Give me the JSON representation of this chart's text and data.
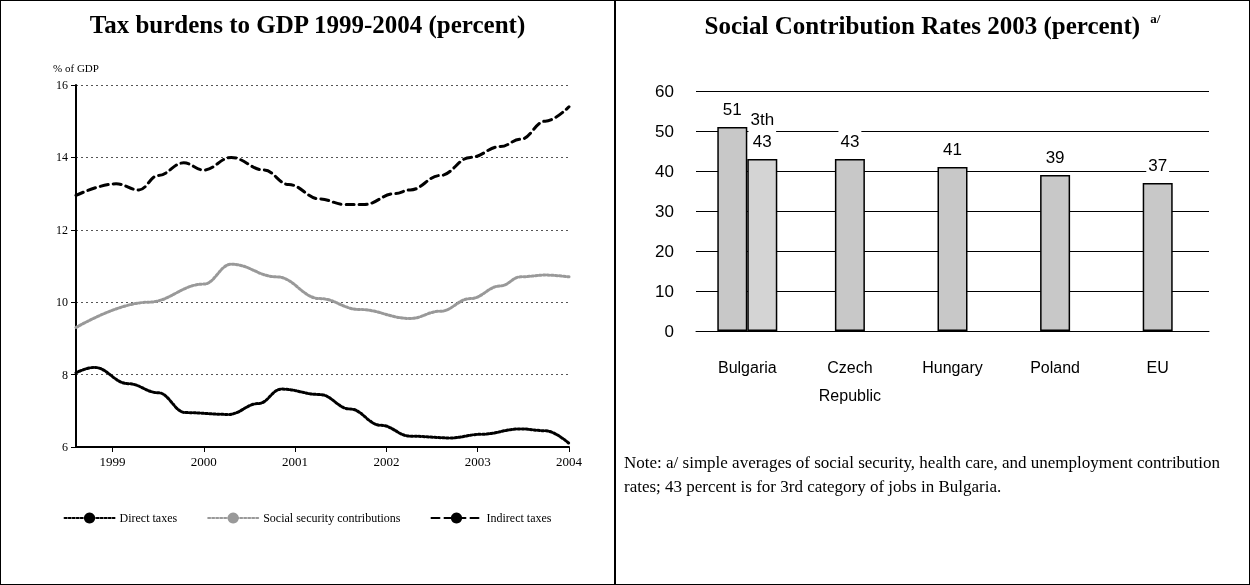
{
  "chart_data": [
    {
      "type": "line",
      "title": "Tax burdens to GDP 1999-2004 (percent)",
      "ylabel": "% of GDP",
      "xlim": [
        1998.6,
        2004
      ],
      "xticks": [
        1999,
        2000,
        2001,
        2002,
        2003,
        2004
      ],
      "ylim": [
        6,
        16
      ],
      "yticks": [
        6,
        8,
        10,
        12,
        14,
        16
      ],
      "grid": "y",
      "legend": "bottom",
      "marker": "none",
      "series": [
        {
          "name": "Direct taxes",
          "color": "#000000",
          "line_style": "dotted",
          "x": [
            1998.6,
            1998.8,
            1999.17,
            1999.5,
            1999.8,
            2000.27,
            2000.6,
            2000.85,
            2001.27,
            2001.6,
            2001.94,
            2002.26,
            2002.7,
            2003.03,
            2003.47,
            2003.74,
            2004
          ],
          "values": [
            8.05,
            8.2,
            7.75,
            7.5,
            6.95,
            6.9,
            7.2,
            7.6,
            7.45,
            7.05,
            6.6,
            6.3,
            6.25,
            6.35,
            6.5,
            6.45,
            6.1
          ]
        },
        {
          "name": "Social security contributions",
          "color": "#999999",
          "line_style": "dotted",
          "x": [
            1998.6,
            1999.39,
            2000.0,
            2000.3,
            2000.8,
            2001.27,
            2001.7,
            2002.26,
            2002.59,
            2002.92,
            2003.25,
            2003.47,
            2003.74,
            2004
          ],
          "values": [
            9.3,
            10.0,
            10.5,
            11.05,
            10.7,
            10.1,
            9.8,
            9.55,
            9.75,
            10.1,
            10.45,
            10.7,
            10.75,
            10.7
          ]
        },
        {
          "name": "Indirect taxes",
          "color": "#000000",
          "line_style": "dashed",
          "x": [
            1998.6,
            1999.04,
            1999.29,
            1999.5,
            1999.78,
            2000.0,
            2000.3,
            2000.66,
            2000.93,
            2001.27,
            2001.54,
            2001.76,
            2002.09,
            2002.26,
            2002.59,
            2002.92,
            2003.25,
            2003.47,
            2003.74,
            2004
          ],
          "values": [
            12.95,
            13.27,
            13.1,
            13.5,
            13.85,
            13.65,
            14.0,
            13.65,
            13.25,
            12.85,
            12.7,
            12.7,
            13.0,
            13.1,
            13.5,
            14.0,
            14.3,
            14.5,
            15.0,
            15.4
          ]
        }
      ]
    },
    {
      "type": "bar",
      "title": "Social Contribution Rates 2003 (percent) $^{a/}$",
      "categories": [
        "Bulgaria",
        "Czech Republic",
        "Hungary",
        "Poland",
        "EU"
      ],
      "ylim": [
        0,
        60
      ],
      "yticks": [
        0,
        10,
        20,
        30,
        40,
        50,
        60
      ],
      "grid": "y",
      "data_labels": true,
      "series": [
        {
          "color": "#c8c8c8",
          "values": [
            51,
            43,
            41,
            39,
            37
          ]
        },
        {
          "color": "#d4d4d4",
          "values": [
            43,
            null,
            null,
            null,
            null
          ]
        }
      ],
      "annotations": [
        {
          "text": "3th",
          "x": "Bulgaria",
          "y": 43
        },
        "Note:  a/ simple averages of social security, health care, and unemployment contribution rates; 43 percent is for 3rd category of jobs in Bulgaria."
      ]
    }
  ]
}
